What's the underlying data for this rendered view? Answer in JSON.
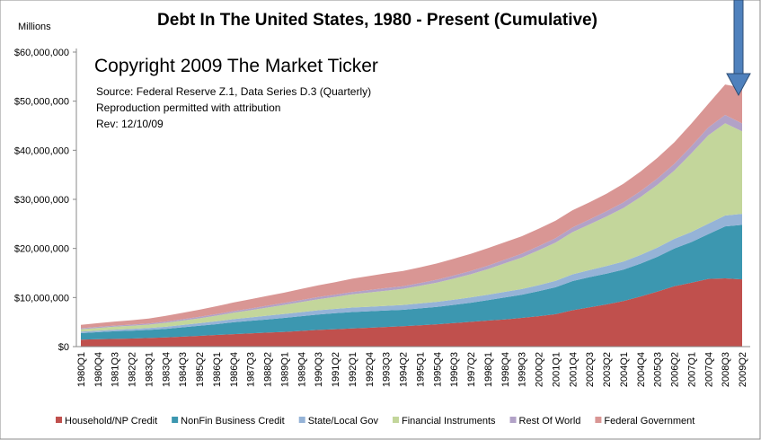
{
  "chart_data": {
    "type": "stacked_area",
    "title": "Debt In The United States, 1980 - Present (Cumulative)",
    "y_label": "Millions",
    "annotations": [
      "Copyright 2009 The Market Ticker",
      "Source: Federal Reserve Z.1, Data Series D.3 (Quarterly)",
      "Reproduction permitted with attribution",
      "Rev: 12/10/09"
    ],
    "categories": [
      "1980Q1",
      "1980Q4",
      "1981Q3",
      "1982Q2",
      "1983Q1",
      "1983Q4",
      "1984Q3",
      "1985Q2",
      "1986Q1",
      "1986Q4",
      "1987Q3",
      "1988Q2",
      "1989Q1",
      "1989Q4",
      "1990Q3",
      "1991Q2",
      "1992Q1",
      "1992Q4",
      "1993Q3",
      "1994Q2",
      "1995Q1",
      "1995Q4",
      "1996Q3",
      "1997Q2",
      "1998Q1",
      "1998Q4",
      "1999Q3",
      "2000Q2",
      "2001Q1",
      "2001Q4",
      "2002Q3",
      "2003Q2",
      "2004Q1",
      "2004Q4",
      "2005Q3",
      "2006Q2",
      "2007Q1",
      "2007Q4",
      "2008Q3",
      "2009Q2"
    ],
    "series": [
      {
        "name": "Household/NP Credit",
        "color": "#c0504d",
        "values": [
          1400000,
          1500000,
          1580000,
          1650000,
          1750000,
          1880000,
          2030000,
          2200000,
          2380000,
          2550000,
          2700000,
          2850000,
          3000000,
          3200000,
          3400000,
          3550000,
          3700000,
          3850000,
          4000000,
          4150000,
          4350000,
          4550000,
          4800000,
          5050000,
          5300000,
          5550000,
          5850000,
          6200000,
          6600000,
          7400000,
          8000000,
          8600000,
          9300000,
          10200000,
          11200000,
          12300000,
          13000000,
          13800000,
          13900000,
          13700000
        ]
      },
      {
        "name": "NonFin Business Credit",
        "color": "#3c97b0",
        "values": [
          1350000,
          1450000,
          1550000,
          1600000,
          1650000,
          1750000,
          1900000,
          2050000,
          2200000,
          2400000,
          2550000,
          2700000,
          2850000,
          3000000,
          3150000,
          3250000,
          3350000,
          3350000,
          3350000,
          3350000,
          3450000,
          3550000,
          3700000,
          3900000,
          4150000,
          4450000,
          4700000,
          5100000,
          5500000,
          5950000,
          6150000,
          6250000,
          6400000,
          6700000,
          7100000,
          7700000,
          8300000,
          9100000,
          10600000,
          11100000
        ]
      },
      {
        "name": "State/Local Gov",
        "color": "#95b3d7",
        "values": [
          300000,
          310000,
          330000,
          350000,
          380000,
          420000,
          470000,
          520000,
          580000,
          640000,
          700000,
          760000,
          800000,
          830000,
          860000,
          880000,
          900000,
          920000,
          950000,
          980000,
          1000000,
          1030000,
          1060000,
          1090000,
          1120000,
          1150000,
          1180000,
          1220000,
          1300000,
          1380000,
          1450000,
          1550000,
          1650000,
          1750000,
          1850000,
          1950000,
          2050000,
          2150000,
          2200000,
          2250000
        ]
      },
      {
        "name": "Financial Instruments",
        "color": "#c3d69b",
        "values": [
          500000,
          550000,
          600000,
          650000,
          700000,
          800000,
          900000,
          1000000,
          1150000,
          1300000,
          1450000,
          1650000,
          1850000,
          2050000,
          2250000,
          2450000,
          2700000,
          2900000,
          3100000,
          3300000,
          3600000,
          3900000,
          4300000,
          4700000,
          5200000,
          5800000,
          6400000,
          7100000,
          7800000,
          8600000,
          9300000,
          10100000,
          10900000,
          11800000,
          12800000,
          13900000,
          16000000,
          18000000,
          18800000,
          16800000
        ]
      },
      {
        "name": "Rest Of World",
        "color": "#b2a2c7",
        "values": [
          200000,
          210000,
          220000,
          230000,
          240000,
          260000,
          280000,
          300000,
          320000,
          340000,
          360000,
          380000,
          400000,
          420000,
          440000,
          460000,
          480000,
          500000,
          520000,
          540000,
          560000,
          600000,
          640000,
          680000,
          720000,
          760000,
          800000,
          850000,
          900000,
          950000,
          1000000,
          1060000,
          1130000,
          1200000,
          1280000,
          1370000,
          1470000,
          1580000,
          1700000,
          1600000
        ]
      },
      {
        "name": "Federal Government",
        "color": "#d99694",
        "values": [
          700000,
          750000,
          820000,
          900000,
          1000000,
          1150000,
          1300000,
          1450000,
          1600000,
          1750000,
          1900000,
          2000000,
          2100000,
          2250000,
          2400000,
          2550000,
          2700000,
          2850000,
          3000000,
          3100000,
          3200000,
          3300000,
          3400000,
          3500000,
          3550000,
          3550000,
          3550000,
          3550000,
          3550000,
          3500000,
          3500000,
          3600000,
          3800000,
          4000000,
          4200000,
          4400000,
          4600000,
          4800000,
          6200000,
          7300000
        ]
      }
    ],
    "ylim": [
      0,
      60000000
    ],
    "yticks": [
      {
        "value": 0,
        "label": "$0"
      },
      {
        "value": 10000000,
        "label": "$10,000,000"
      },
      {
        "value": 20000000,
        "label": "$20,000,000"
      },
      {
        "value": 30000000,
        "label": "$30,000,000"
      },
      {
        "value": 40000000,
        "label": "$40,000,000"
      },
      {
        "value": 50000000,
        "label": "$50,000,000"
      },
      {
        "value": 60000000,
        "label": "$60,000,000"
      }
    ],
    "legend": "bottom"
  }
}
